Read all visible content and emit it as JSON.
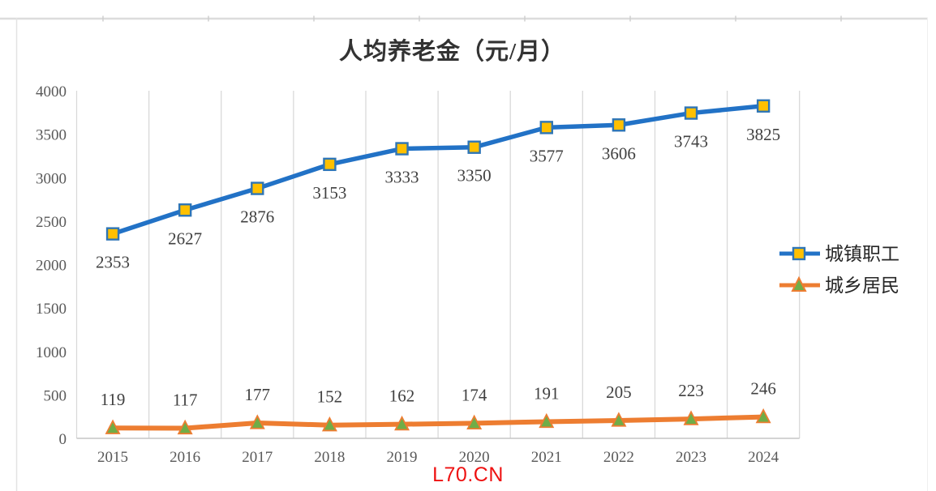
{
  "page": {
    "watermark": "L70.CN",
    "watermark_color": "#ee1111"
  },
  "chart_data": {
    "type": "line",
    "title": "人均养老金（元/月）",
    "categories": [
      "2015",
      "2016",
      "2017",
      "2018",
      "2019",
      "2020",
      "2021",
      "2022",
      "2023",
      "2024"
    ],
    "series": [
      {
        "name": "城镇职工",
        "values": [
          2353,
          2627,
          2876,
          3153,
          3333,
          3350,
          3577,
          3606,
          3743,
          3825
        ],
        "line_color": "#2272C6",
        "marker": "square",
        "marker_fill": "#FFC000",
        "marker_border": "#2E75B6",
        "label_position": "below"
      },
      {
        "name": "城乡居民",
        "values": [
          119,
          117,
          177,
          152,
          162,
          174,
          191,
          205,
          223,
          246
        ],
        "line_color": "#ED7D31",
        "marker": "triangle",
        "marker_fill": "#70AD47",
        "marker_border": "#ED7D31",
        "label_position": "above"
      }
    ],
    "y_axis": {
      "min": 0,
      "max": 4000,
      "step": 500,
      "tick_labels": [
        "0",
        "500",
        "1000",
        "1500",
        "2000",
        "2500",
        "3000",
        "3500",
        "4000"
      ]
    },
    "legend_position": "right",
    "gridlines": "vertical",
    "label_color": "#404040",
    "axis_text_color": "#595959",
    "gridline_color": "#d9d9d9"
  }
}
